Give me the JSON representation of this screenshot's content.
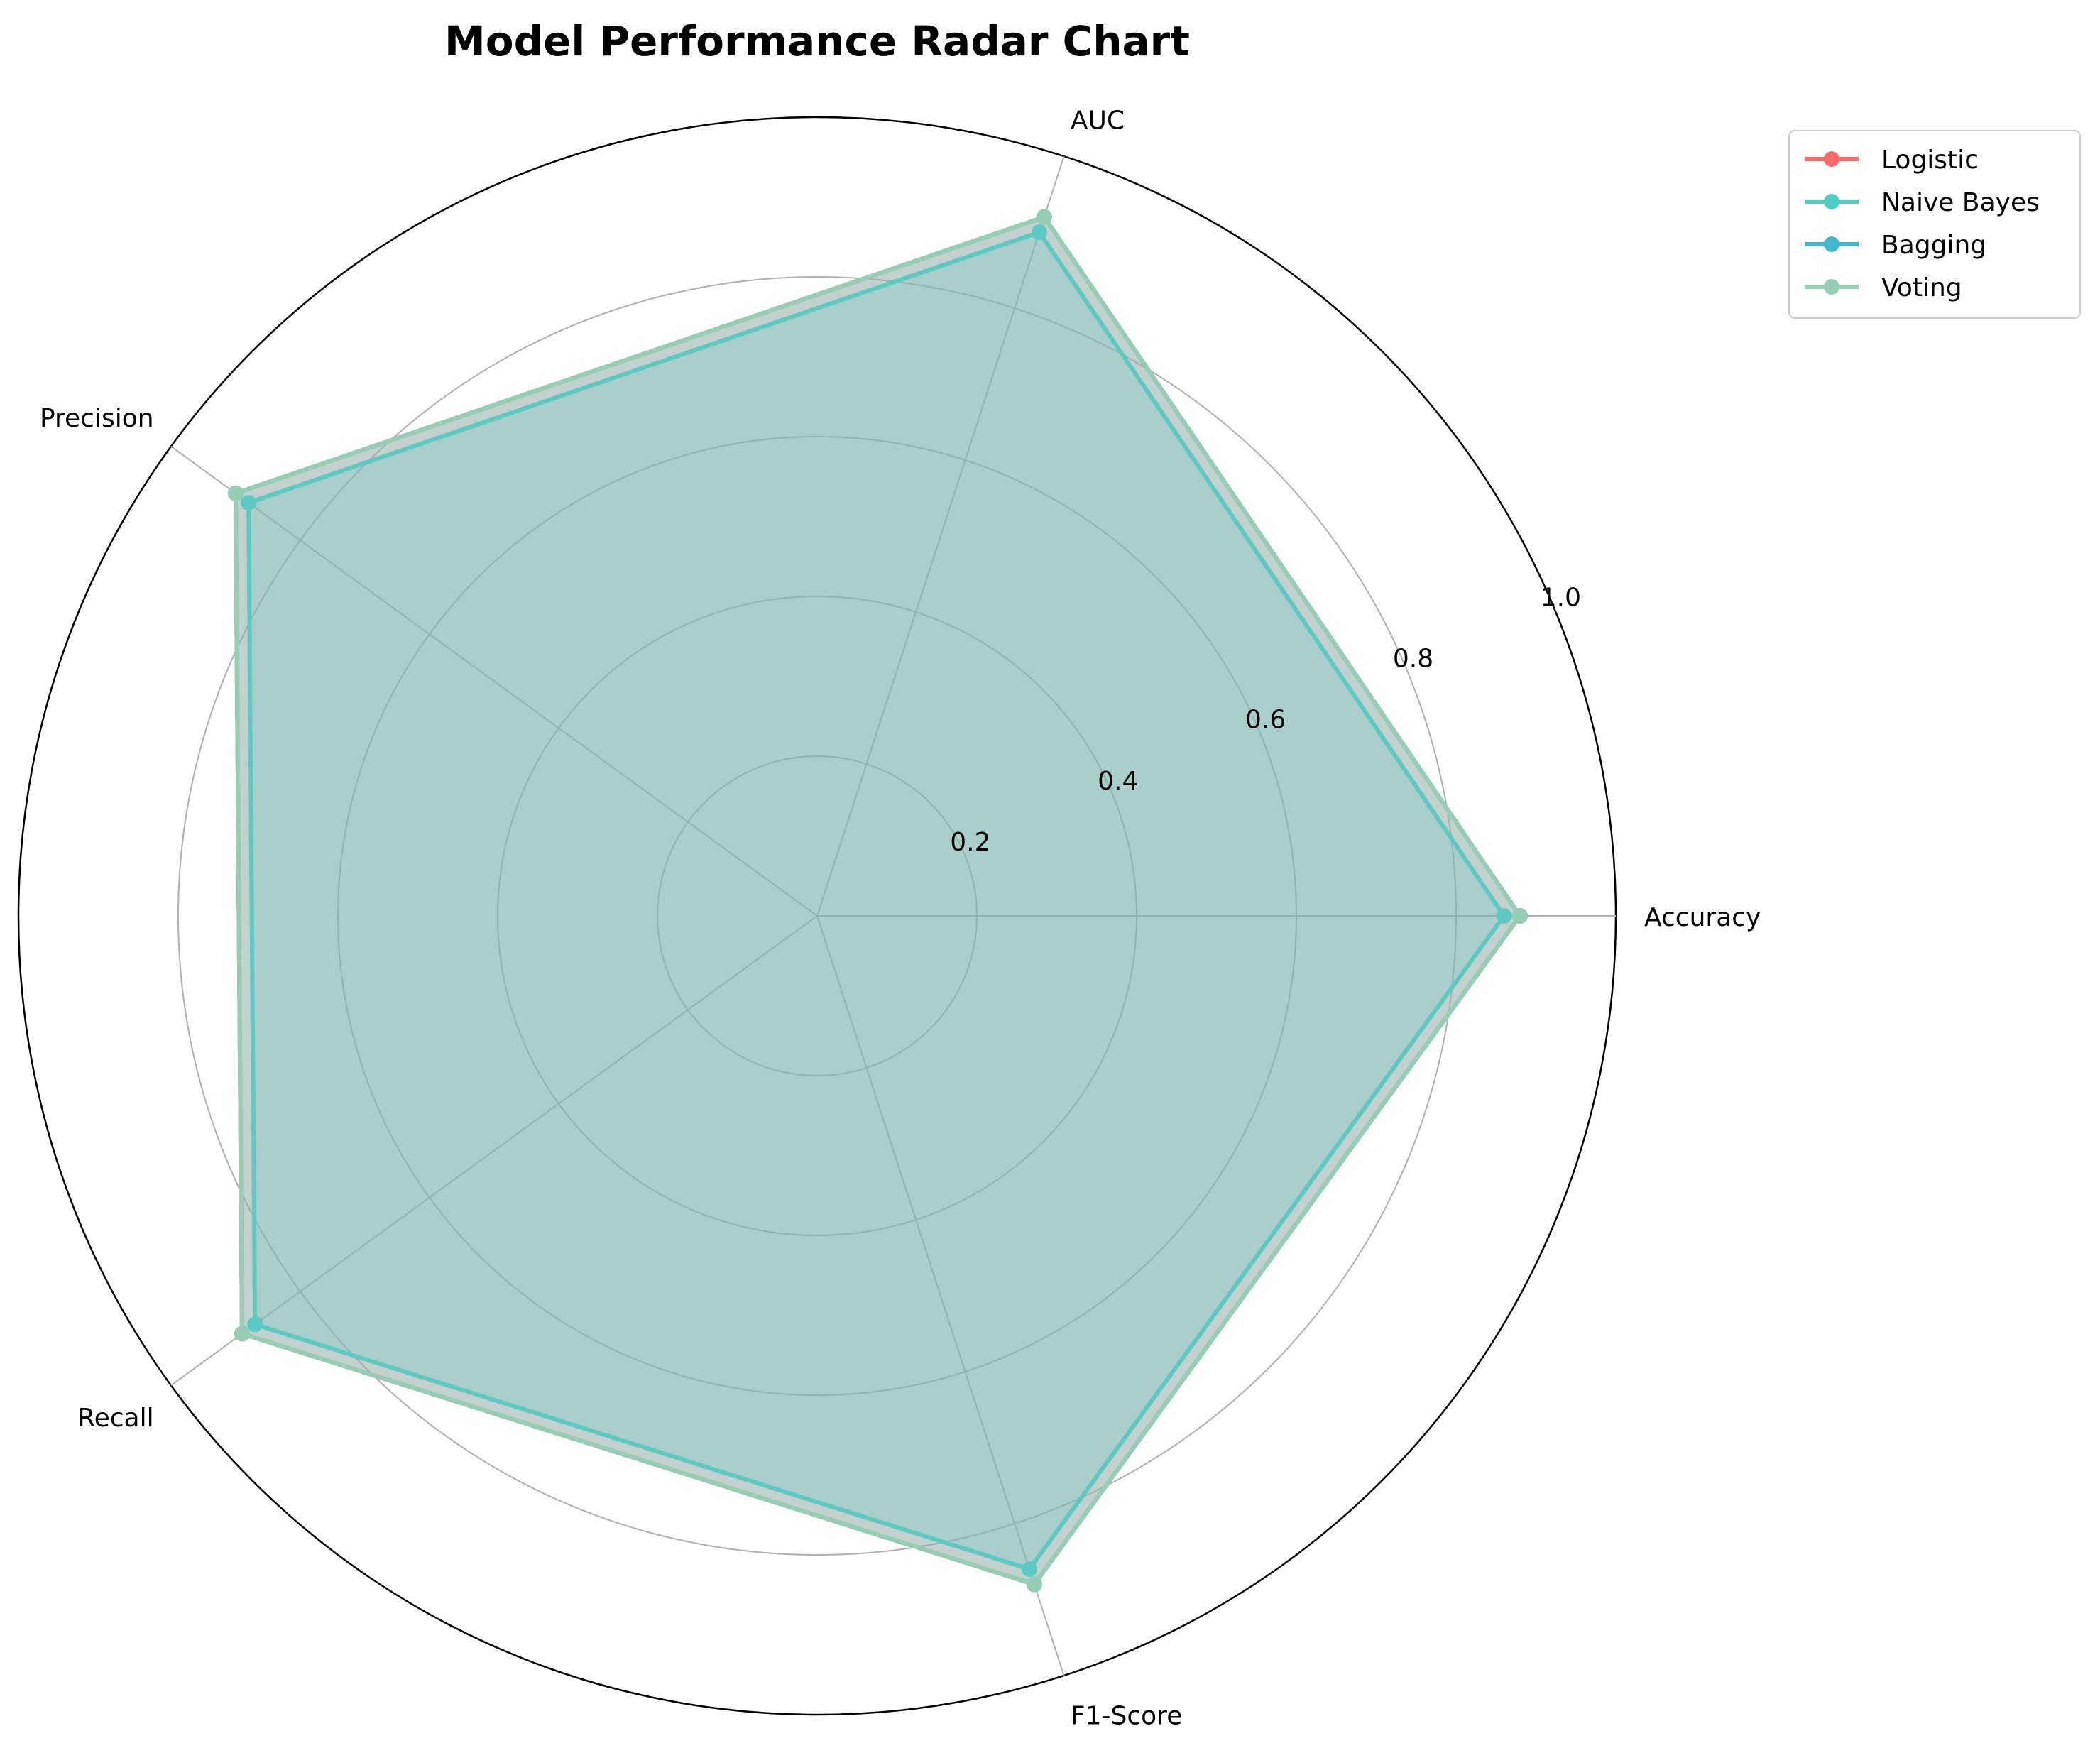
{
  "chart_data": {
    "type": "radar",
    "title": "Model Performance Radar Chart",
    "categories": [
      "Accuracy",
      "AUC",
      "Precision",
      "Recall",
      "F1-Score"
    ],
    "rlim": [
      0,
      1.0
    ],
    "rticks": [
      "0.2",
      "0.4",
      "0.6",
      "0.8",
      "1.0"
    ],
    "rtick_values": [
      0.2,
      0.4,
      0.6,
      0.8,
      1.0
    ],
    "grid": true,
    "legend_position": "upper-right (outside)",
    "series": [
      {
        "name": "Logistic",
        "color": "#FF6B6B",
        "values": [
          0.88,
          0.92,
          0.9,
          0.89,
          0.88
        ]
      },
      {
        "name": "Naive Bayes",
        "color": "#4ECDC4",
        "values": [
          0.86,
          0.9,
          0.88,
          0.87,
          0.86
        ]
      },
      {
        "name": "Bagging",
        "color": "#45B7D1",
        "values": [
          0.88,
          0.92,
          0.9,
          0.89,
          0.88
        ]
      },
      {
        "name": "Voting",
        "color": "#96CEB4",
        "values": [
          0.88,
          0.92,
          0.9,
          0.89,
          0.88
        ]
      }
    ]
  }
}
